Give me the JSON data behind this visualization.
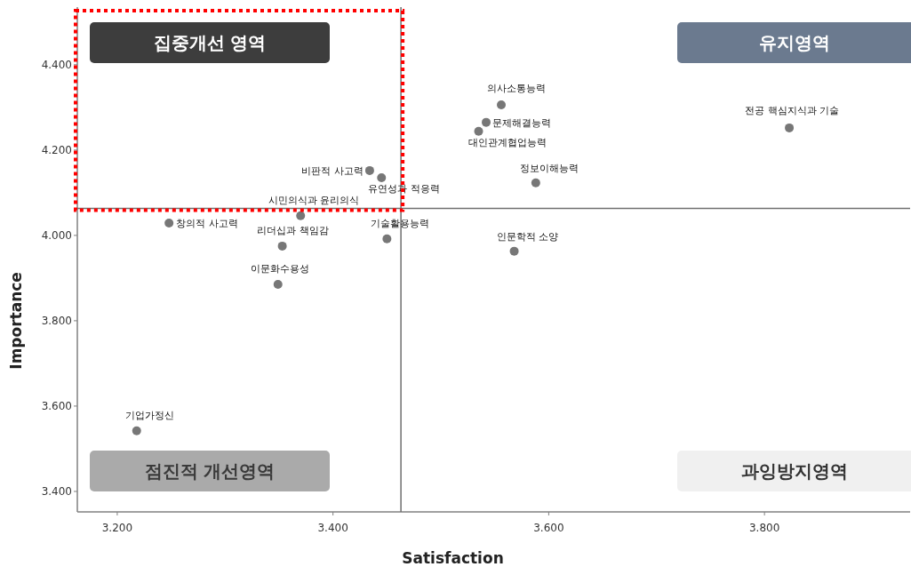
{
  "chart_data": {
    "type": "scatter",
    "xlabel": "Satisfaction",
    "ylabel": "Importance",
    "xlim": [
      3.163,
      3.935
    ],
    "ylim": [
      3.352,
      4.535
    ],
    "xticks": [
      {
        "value": 3.2,
        "label": "3.200"
      },
      {
        "value": 3.4,
        "label": "3.400"
      },
      {
        "value": 3.6,
        "label": "3.600"
      },
      {
        "value": 3.8,
        "label": "3.800"
      }
    ],
    "yticks": [
      {
        "value": 3.4,
        "label": "3.400"
      },
      {
        "value": 3.6,
        "label": "3.600"
      },
      {
        "value": 3.8,
        "label": "3.800"
      },
      {
        "value": 4.0,
        "label": "4.000"
      },
      {
        "value": 4.2,
        "label": "4.200"
      },
      {
        "value": 4.4,
        "label": "4.400"
      }
    ],
    "x": [
      3.248,
      3.37,
      3.353,
      3.349,
      3.434,
      3.445,
      3.45,
      3.556,
      3.542,
      3.535,
      3.588,
      3.568,
      3.823,
      3.218
    ],
    "series": [
      {
        "color": "#777777",
        "values": [
          4.029,
          4.046,
          3.975,
          3.885,
          4.152,
          4.135,
          3.992,
          4.306,
          4.265,
          4.244,
          4.123,
          3.963,
          4.252,
          3.542
        ]
      }
    ],
    "marker": "circle",
    "grid": false,
    "ref_lines": [
      {
        "axis": "x",
        "value": 3.463,
        "color": "#707070"
      },
      {
        "axis": "y",
        "value": 4.063,
        "color": "#707070"
      }
    ],
    "annotations": [
      "집중개선 영역",
      "유지영역",
      "점진적 개선영역",
      "과잉방지영역",
      {
        "text": "창의적 사고력",
        "x": 3.248,
        "y": 4.029
      },
      {
        "text": "시민의식과 윤리의식",
        "x": 3.37,
        "y": 4.046
      },
      {
        "text": "리더십과 책임감",
        "x": 3.353,
        "y": 3.975
      },
      {
        "text": "이문화수용성",
        "x": 3.349,
        "y": 3.885
      },
      {
        "text": "비판적 사고력",
        "x": 3.434,
        "y": 4.152
      },
      {
        "text": "유연성과 적응력",
        "x": 3.445,
        "y": 4.135
      },
      {
        "text": "기술활용능력",
        "x": 3.45,
        "y": 3.992
      },
      {
        "text": "의사소통능력",
        "x": 3.556,
        "y": 4.306
      },
      {
        "text": "문제해결능력",
        "x": 3.542,
        "y": 4.265
      },
      {
        "text": "대인관계협업능력",
        "x": 3.535,
        "y": 4.244
      },
      {
        "text": "정보이해능력",
        "x": 3.588,
        "y": 4.123
      },
      {
        "text": "인문학적 소양",
        "x": 3.568,
        "y": 3.963
      },
      {
        "text": "전공 핵심지식과 기술",
        "x": 3.823,
        "y": 4.252
      },
      {
        "text": "기업가정신",
        "x": 3.218,
        "y": 3.542
      }
    ]
  }
}
